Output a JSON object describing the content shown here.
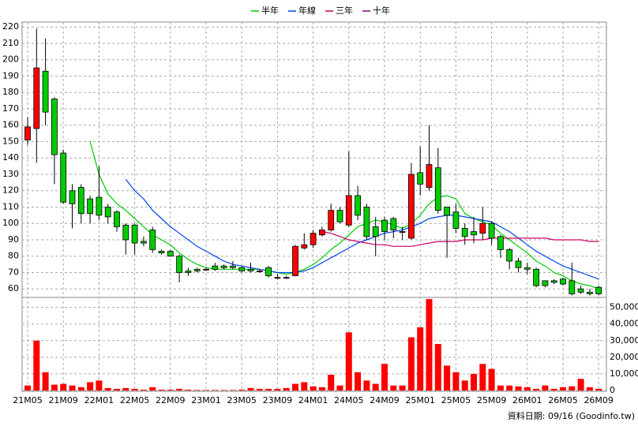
{
  "chart_data": {
    "type": "candlestick",
    "categories": [
      "21M05",
      null,
      null,
      null,
      "21M09",
      null,
      null,
      null,
      "22M01",
      null,
      null,
      null,
      "22M05",
      null,
      null,
      null,
      "22M09",
      null,
      null,
      null,
      "23M01",
      null,
      null,
      null,
      "23M05",
      null,
      null,
      null,
      "23M09",
      null,
      null,
      null,
      "24M01",
      null,
      null,
      null,
      "24M05",
      null,
      null,
      null,
      "24M09",
      null,
      null,
      null,
      "25M01",
      null,
      null,
      null,
      "25M05",
      null,
      null,
      null,
      "25M09",
      null,
      null,
      null,
      "26M01",
      null,
      null,
      null,
      "26M05",
      null,
      null,
      null,
      "26M09"
    ],
    "open": [
      151,
      158,
      193,
      176,
      143,
      120,
      122,
      115,
      116,
      110,
      107,
      99,
      99,
      89,
      96,
      83,
      83,
      80,
      71,
      72,
      72,
      74,
      74,
      74,
      73,
      72,
      71,
      73,
      67,
      67,
      68,
      85,
      87,
      93,
      96,
      108,
      99,
      117,
      110,
      98,
      102,
      103,
      95,
      91,
      131,
      122,
      134,
      110,
      107,
      97,
      95,
      94,
      100,
      92,
      84,
      77,
      73,
      72,
      65,
      65,
      66,
      65,
      60,
      58,
      61
    ],
    "high": [
      165,
      219,
      213,
      177,
      145,
      124,
      124,
      117,
      135,
      112,
      108,
      100,
      100,
      92,
      98,
      84,
      84,
      81,
      73,
      73,
      73,
      76,
      75,
      77,
      74,
      76,
      72,
      74,
      69,
      68,
      87,
      94,
      96,
      98,
      112,
      110,
      144,
      123,
      112,
      104,
      104,
      104,
      98,
      137,
      147,
      160,
      146,
      110,
      112,
      100,
      104,
      110,
      101,
      93,
      85,
      79,
      76,
      73,
      65,
      66,
      67,
      76,
      62,
      60,
      62
    ],
    "low": [
      148,
      137,
      160,
      124,
      112,
      97,
      100,
      100,
      102,
      100,
      95,
      81,
      81,
      86,
      82,
      81,
      80,
      64,
      68,
      70,
      71,
      71,
      72,
      72,
      70,
      70,
      70,
      67,
      66,
      66,
      68,
      84,
      85,
      92,
      95,
      100,
      98,
      102,
      90,
      80,
      90,
      91,
      90,
      90,
      117,
      120,
      106,
      79,
      94,
      87,
      88,
      90,
      87,
      79,
      72,
      70,
      69,
      61,
      61,
      63,
      62,
      56,
      57,
      56,
      56
    ],
    "close": [
      159,
      195,
      168,
      142,
      113,
      112,
      106,
      106,
      105,
      104,
      98,
      90,
      88,
      88,
      84,
      82,
      80,
      70,
      70,
      71,
      72,
      72,
      73,
      73,
      71,
      71,
      71,
      68,
      67,
      67,
      86,
      87,
      94,
      96,
      108,
      101,
      117,
      105,
      92,
      92,
      95,
      96,
      95,
      130,
      124,
      136,
      108,
      105,
      97,
      92,
      93,
      100,
      91,
      84,
      77,
      73,
      72,
      62,
      62,
      64,
      63,
      57,
      58,
      57,
      57
    ],
    "up_color": "#ff0000",
    "down_color": "#00cc00",
    "ylim": [
      55,
      223
    ],
    "yticks": [
      60,
      70,
      80,
      90,
      100,
      110,
      120,
      130,
      140,
      150,
      160,
      170,
      180,
      190,
      200,
      210,
      220
    ],
    "grid": true,
    "series": [
      {
        "name": "半年",
        "color": "#00cc00",
        "values": [
          null,
          null,
          null,
          null,
          null,
          null,
          null,
          150,
          130,
          118,
          112,
          108,
          103,
          98,
          93,
          90,
          87,
          82,
          78,
          75,
          73,
          72,
          72,
          72,
          72,
          72,
          72,
          71,
          70,
          69,
          70,
          72,
          75,
          79,
          84,
          88,
          93,
          98,
          100,
          102,
          101,
          99,
          97,
          100,
          105,
          112,
          116,
          117,
          115,
          106,
          103,
          101,
          99,
          94,
          90,
          86,
          82,
          77,
          74,
          70,
          68,
          65,
          63,
          62,
          60
        ]
      },
      {
        "name": "年線",
        "color": "#0044ee",
        "values": [
          null,
          null,
          null,
          null,
          null,
          null,
          null,
          null,
          null,
          null,
          null,
          127,
          120,
          115,
          108,
          103,
          98,
          94,
          90,
          86,
          83,
          80,
          77,
          75,
          74,
          73,
          72,
          71,
          70,
          70,
          70,
          71,
          73,
          76,
          79,
          82,
          85,
          88,
          90,
          92,
          94,
          95,
          96,
          98,
          100,
          103,
          104,
          105,
          105,
          104,
          103,
          102,
          101,
          98,
          95,
          91,
          87,
          83,
          80,
          77,
          74,
          72,
          70,
          68,
          66
        ]
      },
      {
        "name": "三年",
        "color": "#cc0066",
        "values": [
          null,
          null,
          null,
          null,
          null,
          null,
          null,
          null,
          null,
          null,
          null,
          null,
          null,
          null,
          null,
          null,
          null,
          null,
          null,
          null,
          null,
          null,
          null,
          null,
          null,
          null,
          null,
          null,
          null,
          null,
          null,
          null,
          null,
          95,
          94,
          92,
          90,
          89,
          88,
          87,
          87,
          86,
          86,
          86,
          87,
          88,
          89,
          89,
          89,
          90,
          90,
          90,
          91,
          91,
          91,
          91,
          91,
          91,
          91,
          90,
          90,
          90,
          90,
          89,
          89
        ]
      },
      {
        "name": "十年",
        "color": "#800080",
        "values": [
          null,
          null,
          null,
          null,
          null,
          null,
          null,
          null,
          null,
          null,
          null,
          null,
          null,
          null,
          null,
          null,
          null,
          null,
          null,
          null,
          null,
          null,
          null,
          null,
          null,
          null,
          null,
          null,
          null,
          null,
          null,
          null,
          null,
          null,
          null,
          null,
          null,
          null,
          null,
          null,
          null,
          null,
          null,
          null,
          null,
          null,
          null,
          null,
          null,
          null,
          null,
          null,
          null,
          null,
          null,
          null,
          null,
          null,
          null,
          null,
          null,
          null,
          null,
          null,
          null
        ]
      }
    ],
    "volume": {
      "color": "#ff0000",
      "values": [
        3000,
        30000,
        11000,
        3500,
        4000,
        3000,
        2000,
        5000,
        6000,
        1500,
        1000,
        1500,
        1000,
        500,
        2000,
        500,
        500,
        1000,
        500,
        300,
        300,
        300,
        300,
        300,
        500,
        1500,
        1000,
        1000,
        1000,
        1500,
        4000,
        5000,
        2500,
        2000,
        9500,
        3000,
        35000,
        11000,
        6000,
        4000,
        16000,
        3000,
        3000,
        32000,
        38000,
        55000,
        28000,
        15000,
        11000,
        6000,
        10000,
        16000,
        13000,
        3000,
        3000,
        2500,
        2000,
        1000,
        3000,
        1000,
        2000,
        2500,
        7000,
        2000,
        1000
      ],
      "ylim": [
        0,
        56000
      ],
      "yticks": [
        0,
        {
          "value": 10000,
          "label": "10,000"
        },
        {
          "value": 20000,
          "label": "20,000"
        },
        {
          "value": 30000,
          "label": "30,000"
        },
        {
          "value": 40000,
          "label": "40,000"
        },
        {
          "value": 50000,
          "label": "50,000"
        }
      ]
    },
    "footer": "資料日期: 09/16 (Goodinfo.tw)"
  }
}
